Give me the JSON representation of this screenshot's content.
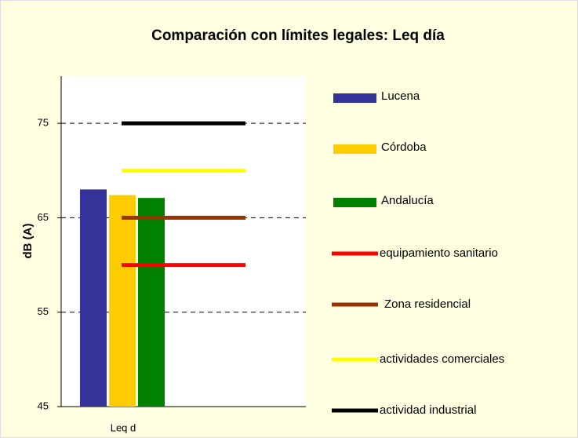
{
  "chart_data": {
    "type": "bar",
    "title": "Comparación con límites legales: Leq día",
    "y_label": "dB (A)",
    "categories": [
      "Leq d"
    ],
    "ylim": [
      45,
      80
    ],
    "yticks": [
      45,
      55,
      65,
      75
    ],
    "grid": true,
    "series": [
      {
        "name": "Lucena",
        "color": "#333399",
        "values": [
          68
        ]
      },
      {
        "name": "Córdoba",
        "color": "#FFCC00",
        "values": [
          67.4
        ]
      },
      {
        "name": "Andalucía",
        "color": "#008000",
        "values": [
          67.1
        ]
      }
    ],
    "limits": [
      {
        "name": "equipamiento sanitario",
        "color": "#FF0000",
        "value": 60
      },
      {
        "name": "Zona residencial",
        "color": "#993300",
        "value": 65
      },
      {
        "name": "actividades comerciales",
        "color": "#FFFF00",
        "value": 70
      },
      {
        "name": "actividad industrial",
        "color": "#000000",
        "value": 75
      }
    ]
  }
}
